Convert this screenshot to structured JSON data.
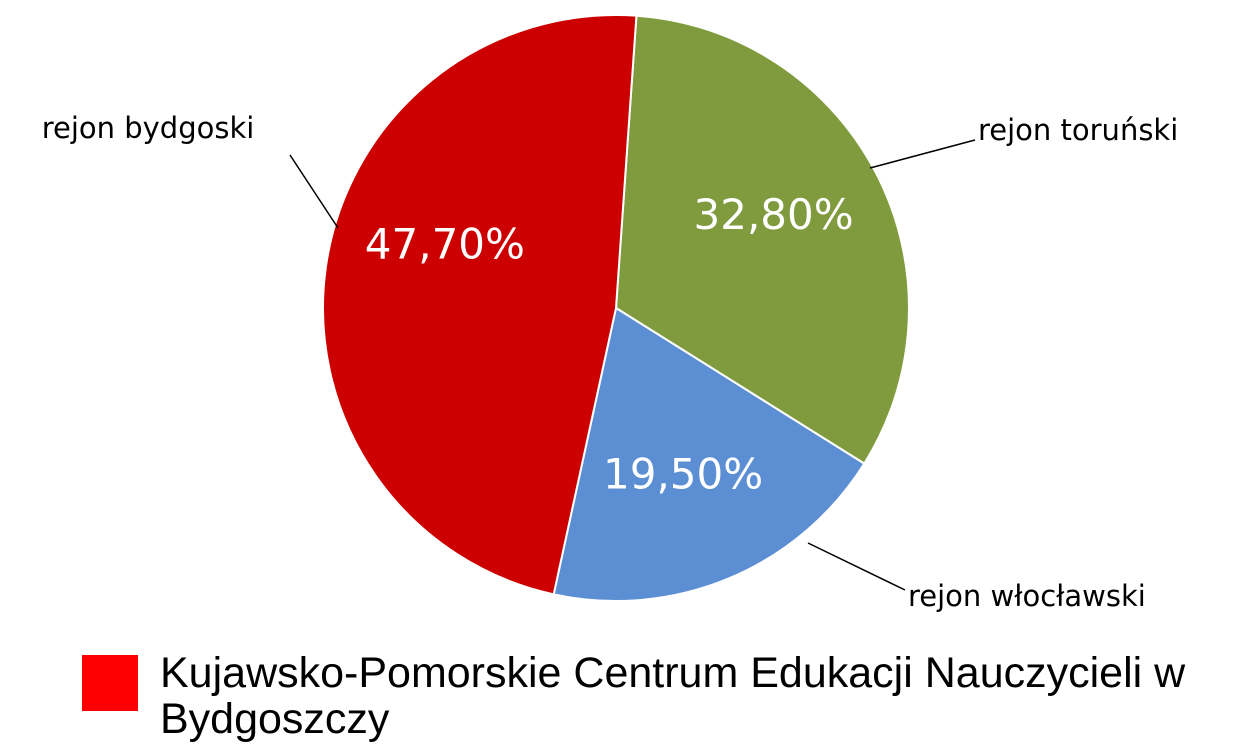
{
  "chart_data": {
    "type": "pie",
    "categories": [
      "rejon toruński",
      "rejon włocławski",
      "rejon bydgoski"
    ],
    "values": [
      32.8,
      19.5,
      47.7
    ],
    "value_labels": [
      "32,80%",
      "19,50%",
      "47,70%"
    ],
    "colors": [
      "#7f9b3e",
      "#5b8ed2",
      "#cc0000"
    ],
    "legend": {
      "label": "Kujawsko-Pomorskie Centrum Edukacji Nauczycieli w Bydgoszczy",
      "color": "#ff0000"
    }
  }
}
